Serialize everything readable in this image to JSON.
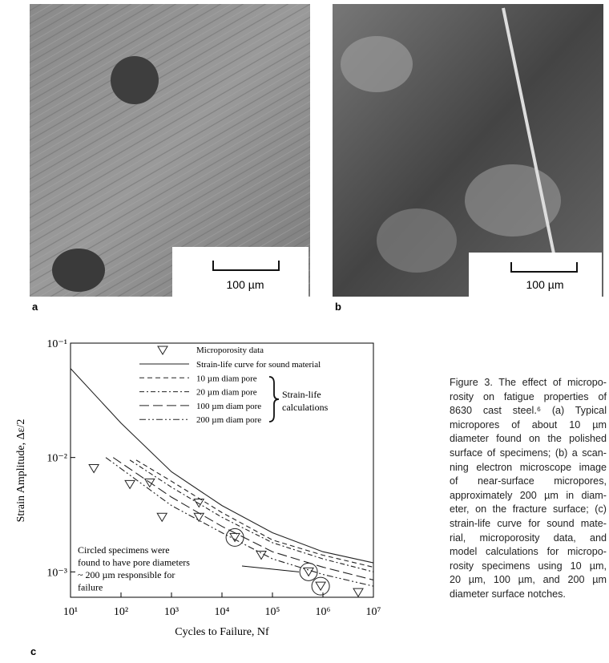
{
  "panels": [
    {
      "label": "a",
      "scale_bar": "100 µm"
    },
    {
      "label": "b",
      "scale_bar": "100 µm"
    }
  ],
  "chart_data": {
    "type": "line",
    "panel_label": "c",
    "x_label": "Cycles to Failure, Nf",
    "y_label": "Strain Amplitude, Δε/2",
    "log_scale": true,
    "xlim": [
      10,
      10000000
    ],
    "ylim": [
      0.0006,
      0.1
    ],
    "xticks": [
      {
        "value": 10,
        "label": "10¹"
      },
      {
        "value": 100,
        "label": "10²"
      },
      {
        "value": 1000,
        "label": "10³"
      },
      {
        "value": 10000,
        "label": "10⁴"
      },
      {
        "value": 100000,
        "label": "10⁵"
      },
      {
        "value": 1000000,
        "label": "10⁶"
      },
      {
        "value": 10000000,
        "label": "10⁷"
      }
    ],
    "yticks": [
      {
        "value": 0.1,
        "label": "10⁻¹"
      },
      {
        "value": 0.01,
        "label": "10⁻²"
      },
      {
        "value": 0.001,
        "label": "10⁻³"
      }
    ],
    "points": {
      "name": "Microporosity data",
      "x": [
        29,
        150,
        370,
        650,
        3500,
        3500,
        18000,
        60000,
        520000,
        900000,
        5000000
      ],
      "values": [
        0.008,
        0.0058,
        0.006,
        0.003,
        0.004,
        0.003,
        0.002,
        0.0014,
        0.001,
        0.00075,
        0.00066
      ],
      "circled": [
        false,
        false,
        false,
        false,
        false,
        false,
        true,
        false,
        true,
        true,
        false
      ]
    },
    "series": [
      {
        "name": "Strain-life curve for sound material",
        "dash": "none",
        "x": [
          10,
          100,
          1000,
          10000,
          100000,
          1000000,
          10000000
        ],
        "values": [
          0.06,
          0.02,
          0.0075,
          0.0038,
          0.0022,
          0.0015,
          0.0012
        ]
      },
      {
        "name": "10 µm diam pore",
        "dash": "6,4",
        "x": [
          200,
          1000,
          10000,
          100000,
          1000000,
          10000000
        ],
        "values": [
          0.0095,
          0.0062,
          0.0033,
          0.0019,
          0.0014,
          0.0011
        ]
      },
      {
        "name": "20 µm diam pore",
        "dash": "6,3,2,3",
        "x": [
          150,
          1000,
          10000,
          100000,
          1000000,
          10000000
        ],
        "values": [
          0.0095,
          0.0055,
          0.003,
          0.0018,
          0.0013,
          0.001
        ]
      },
      {
        "name": "100 µm diam pore",
        "dash": "12,5",
        "x": [
          70,
          1000,
          10000,
          100000,
          1000000,
          10000000
        ],
        "values": [
          0.01,
          0.0045,
          0.0025,
          0.0015,
          0.0011,
          0.00085
        ]
      },
      {
        "name": "200 µm diam pore",
        "dash": "8,3,2,3,2,3",
        "x": [
          50,
          1000,
          10000,
          100000,
          1000000,
          10000000
        ],
        "values": [
          0.01,
          0.0038,
          0.0022,
          0.0013,
          0.00095,
          0.00075
        ]
      }
    ],
    "legend_group_label": [
      "Strain-life",
      "calculations"
    ],
    "annotation": [
      "Circled specimens were",
      "found to have pore diameters",
      "~ 200 µm responsible for",
      "failure"
    ]
  },
  "caption": [
    "Figure 3. The effect of micropo-",
    "rosity on fatigue properties of",
    "8630 cast steel.⁶ (a) Typical",
    "micropores of about 10 µm",
    "diameter found on the polished",
    "surface of specimens; (b) a scan-",
    "ning electron microscope image",
    "of near-surface micropores,",
    "approximately 200 µm in diam-",
    "eter, on the fracture surface; (c)",
    "strain-life curve for sound mate-",
    "rial, microporosity data, and",
    "model calculations for micropo-",
    "rosity specimens using 10 µm,",
    "20 µm, 100 µm, and 200 µm",
    "diameter surface notches."
  ]
}
